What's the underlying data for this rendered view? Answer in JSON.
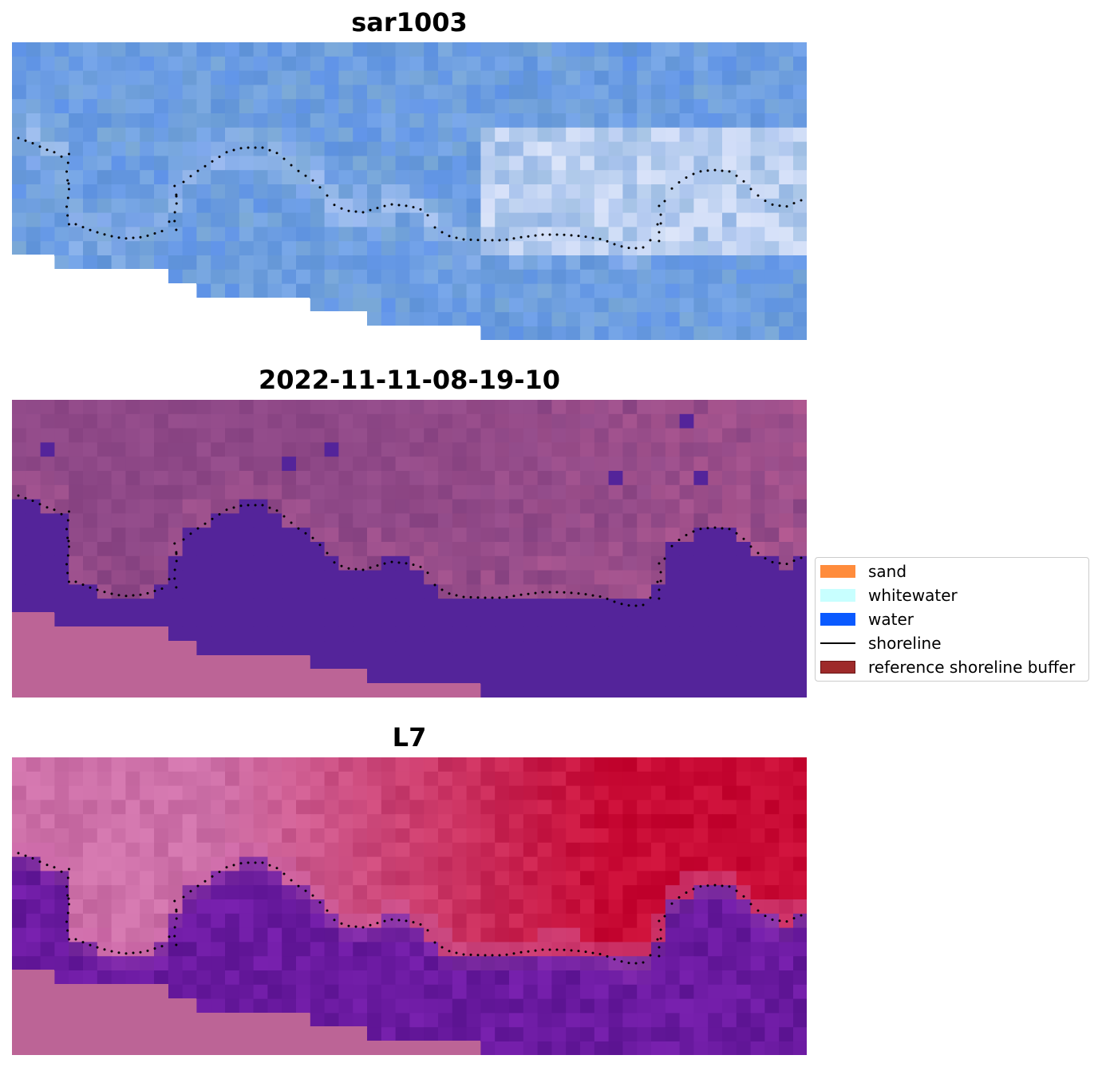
{
  "panels": [
    {
      "title": "sar1003",
      "scheme": "sar"
    },
    {
      "title": "2022-11-11-08-19-10",
      "scheme": "classified"
    },
    {
      "title": "L7",
      "scheme": "l7"
    }
  ],
  "legend": {
    "items": [
      {
        "label": "sand",
        "color": "#ff8c3c",
        "kind": "patch"
      },
      {
        "label": "whitewater",
        "color": "#c8ffff",
        "kind": "patch"
      },
      {
        "label": "water",
        "color": "#0a5aff",
        "kind": "patch"
      },
      {
        "label": "shoreline",
        "color": "#000000",
        "kind": "line"
      },
      {
        "label": "reference shoreline buffer",
        "color": "#9e2a2a",
        "kind": "patch"
      }
    ]
  },
  "colors": {
    "nodata_fill": "#bc6496",
    "sar_base": "#6d9ee0",
    "classified_water": "#54249a",
    "classified_land": "#8e4887",
    "l7_land": "#c8204a",
    "l7_water": "#6a1aa0"
  }
}
